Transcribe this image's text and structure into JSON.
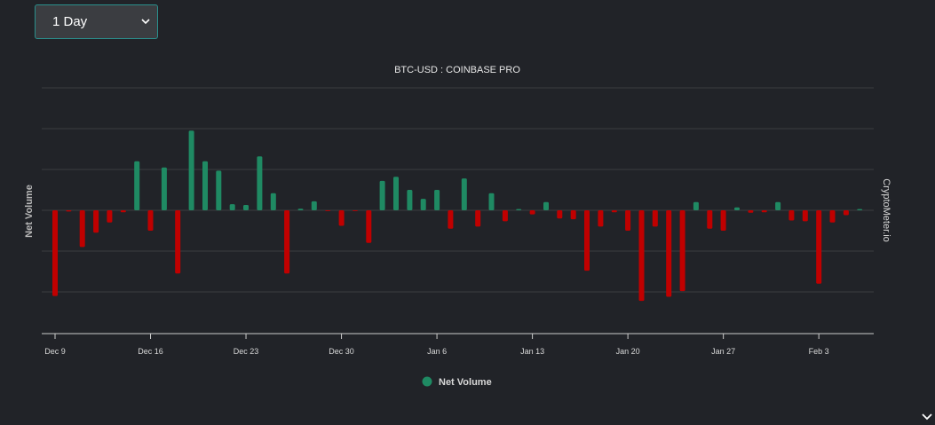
{
  "interval_select": {
    "value": "1 Day"
  },
  "colors": {
    "positive": "#1f8a63",
    "negative": "#c00000",
    "grid": "#3a3c41",
    "axis": "#cccccc"
  },
  "chart_data": {
    "type": "bar",
    "title": "BTC-USD : COINBASE PRO",
    "ylabel": "Net Volume",
    "credit": "CryptoMeter.io",
    "legend": [
      "Net Volume"
    ],
    "legend_position": "bottom",
    "grid": true,
    "ylim": [
      -3,
      3
    ],
    "xlim": [
      "2019-12-08",
      "2020-02-06"
    ],
    "x_ticks": [
      {
        "date": "2019-12-09",
        "label": "Dec 9"
      },
      {
        "date": "2019-12-16",
        "label": "Dec 16"
      },
      {
        "date": "2019-12-23",
        "label": "Dec 23"
      },
      {
        "date": "2019-12-30",
        "label": "Dec 30"
      },
      {
        "date": "2020-01-06",
        "label": "Jan 6"
      },
      {
        "date": "2020-01-13",
        "label": "Jan 13"
      },
      {
        "date": "2020-01-20",
        "label": "Jan 20"
      },
      {
        "date": "2020-01-27",
        "label": "Jan 27"
      },
      {
        "date": "2020-02-03",
        "label": "Feb 3"
      }
    ],
    "series": [
      {
        "name": "Net Volume",
        "points": [
          {
            "x": "2019-12-09",
            "y": -2.1
          },
          {
            "x": "2019-12-10",
            "y": -0.03
          },
          {
            "x": "2019-12-11",
            "y": -0.9
          },
          {
            "x": "2019-12-12",
            "y": -0.55
          },
          {
            "x": "2019-12-13",
            "y": -0.3
          },
          {
            "x": "2019-12-14",
            "y": -0.05
          },
          {
            "x": "2019-12-15",
            "y": 1.2
          },
          {
            "x": "2019-12-16",
            "y": -0.5
          },
          {
            "x": "2019-12-17",
            "y": 1.05
          },
          {
            "x": "2019-12-18",
            "y": -1.55
          },
          {
            "x": "2019-12-19",
            "y": 1.95
          },
          {
            "x": "2019-12-20",
            "y": 1.2
          },
          {
            "x": "2019-12-21",
            "y": 0.97
          },
          {
            "x": "2019-12-22",
            "y": 0.15
          },
          {
            "x": "2019-12-23",
            "y": 0.13
          },
          {
            "x": "2019-12-24",
            "y": 1.32
          },
          {
            "x": "2019-12-25",
            "y": 0.42
          },
          {
            "x": "2019-12-26",
            "y": -1.55
          },
          {
            "x": "2019-12-27",
            "y": 0.04
          },
          {
            "x": "2019-12-28",
            "y": 0.22
          },
          {
            "x": "2019-12-29",
            "y": -0.02
          },
          {
            "x": "2019-12-30",
            "y": -0.38
          },
          {
            "x": "2019-12-31",
            "y": -0.02
          },
          {
            "x": "2020-01-01",
            "y": -0.8
          },
          {
            "x": "2020-01-02",
            "y": 0.72
          },
          {
            "x": "2020-01-03",
            "y": 0.82
          },
          {
            "x": "2020-01-04",
            "y": 0.5
          },
          {
            "x": "2020-01-05",
            "y": 0.28
          },
          {
            "x": "2020-01-06",
            "y": 0.5
          },
          {
            "x": "2020-01-07",
            "y": -0.45
          },
          {
            "x": "2020-01-08",
            "y": 0.78
          },
          {
            "x": "2020-01-09",
            "y": -0.4
          },
          {
            "x": "2020-01-10",
            "y": 0.42
          },
          {
            "x": "2020-01-11",
            "y": -0.27
          },
          {
            "x": "2020-01-12",
            "y": 0.03
          },
          {
            "x": "2020-01-13",
            "y": -0.1
          },
          {
            "x": "2020-01-14",
            "y": 0.2
          },
          {
            "x": "2020-01-15",
            "y": -0.2
          },
          {
            "x": "2020-01-16",
            "y": -0.22
          },
          {
            "x": "2020-01-17",
            "y": -1.48
          },
          {
            "x": "2020-01-18",
            "y": -0.4
          },
          {
            "x": "2020-01-19",
            "y": -0.05
          },
          {
            "x": "2020-01-20",
            "y": -0.5
          },
          {
            "x": "2020-01-21",
            "y": -2.22
          },
          {
            "x": "2020-01-22",
            "y": -0.4
          },
          {
            "x": "2020-01-23",
            "y": -2.12
          },
          {
            "x": "2020-01-24",
            "y": -1.98
          },
          {
            "x": "2020-01-25",
            "y": 0.2
          },
          {
            "x": "2020-01-26",
            "y": -0.45
          },
          {
            "x": "2020-01-27",
            "y": -0.5
          },
          {
            "x": "2020-01-28",
            "y": 0.07
          },
          {
            "x": "2020-01-29",
            "y": -0.06
          },
          {
            "x": "2020-01-30",
            "y": -0.05
          },
          {
            "x": "2020-01-31",
            "y": 0.2
          },
          {
            "x": "2020-02-01",
            "y": -0.25
          },
          {
            "x": "2020-02-02",
            "y": -0.27
          },
          {
            "x": "2020-02-03",
            "y": -1.8
          },
          {
            "x": "2020-02-04",
            "y": -0.3
          },
          {
            "x": "2020-02-05",
            "y": -0.12
          },
          {
            "x": "2020-02-06",
            "y": 0.03
          }
        ]
      }
    ]
  }
}
